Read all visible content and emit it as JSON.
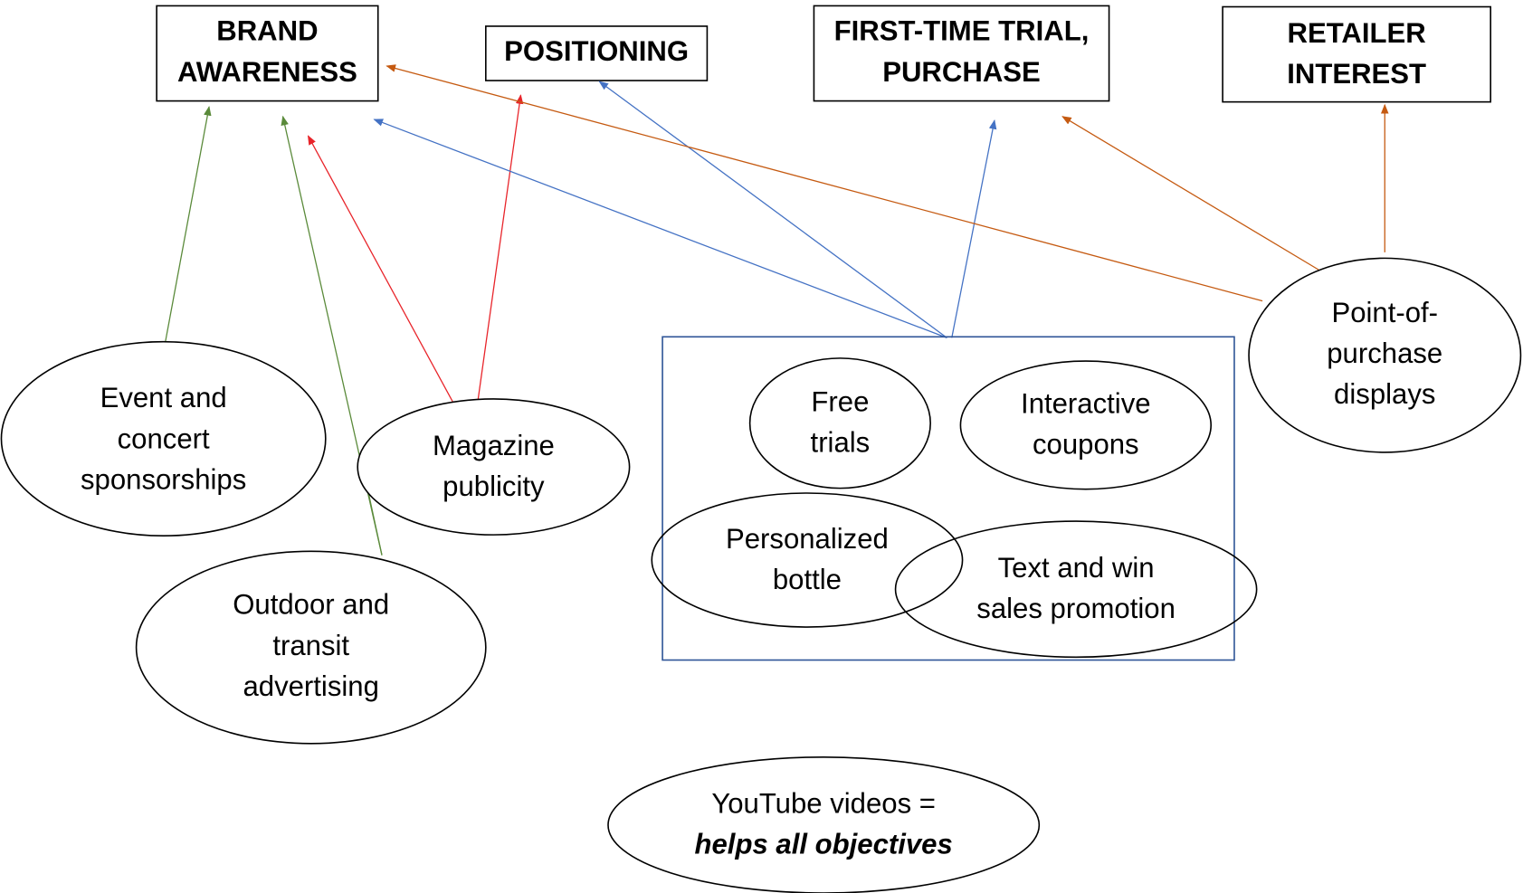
{
  "objectives": [
    {
      "lines": [
        "BRAND",
        "AWARENESS"
      ]
    },
    {
      "lines": [
        "POSITIONING"
      ]
    },
    {
      "lines": [
        "FIRST-TIME TRIAL,",
        "PURCHASE"
      ]
    },
    {
      "lines": [
        "RETAILER",
        "INTEREST"
      ]
    }
  ],
  "tactics": [
    {
      "lines": [
        "Event and",
        "concert",
        "sponsorships"
      ]
    },
    {
      "lines": [
        "Outdoor and",
        "transit",
        "advertising"
      ]
    },
    {
      "lines": [
        "Magazine",
        "publicity"
      ]
    },
    {
      "lines": [
        "Free",
        "trials"
      ]
    },
    {
      "lines": [
        "Interactive",
        "coupons"
      ]
    },
    {
      "lines": [
        "Personalized",
        "bottle"
      ]
    },
    {
      "lines": [
        "Text and win",
        "sales promotion"
      ]
    },
    {
      "lines": [
        "Point-of-",
        "purchase",
        "displays"
      ]
    }
  ],
  "youtube": {
    "lines": [
      "YouTube videos =",
      "helps all objectives"
    ]
  }
}
